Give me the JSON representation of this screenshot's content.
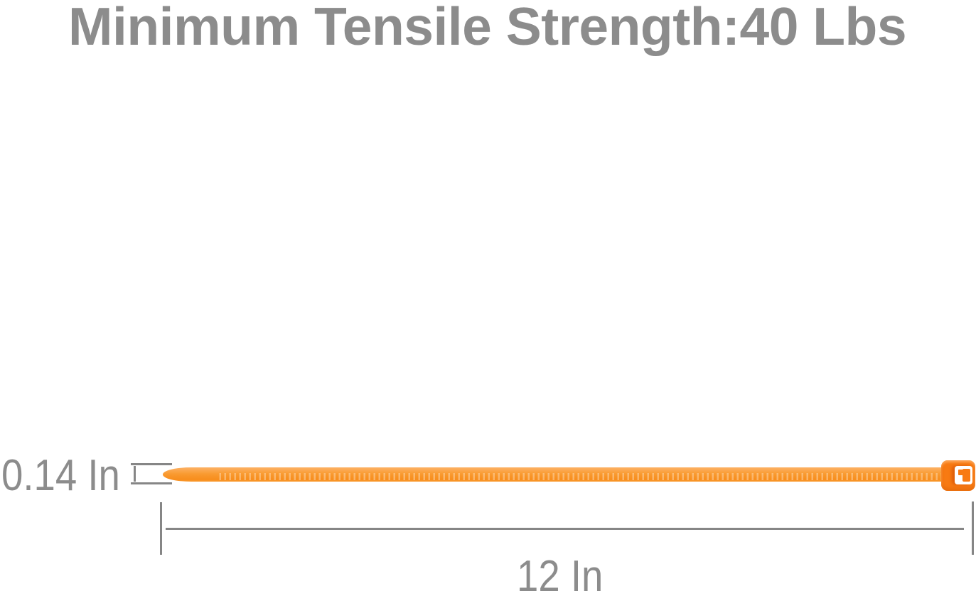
{
  "title": {
    "text": "Minimum Tensile Strength:40 Lbs"
  },
  "annotations": {
    "width_label": "0.14 In",
    "length_label": "12 In"
  },
  "colors": {
    "title_gray": "#8C8C8C",
    "label_gray": "#8C8C8C",
    "line_gray": "#868686",
    "strap_light": "#FCAD5C",
    "strap_mid": "#F99B31",
    "strap_deep": "#F88D1C",
    "head_orange": "#F87A12",
    "slot_white": "#FFFFFF"
  }
}
